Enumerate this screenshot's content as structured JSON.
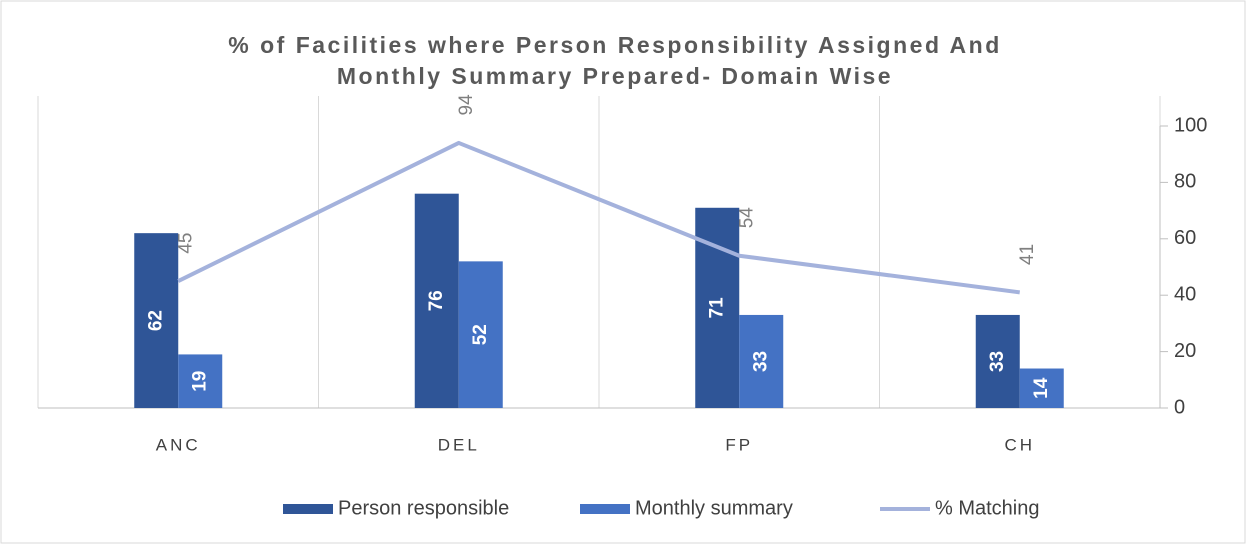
{
  "chart_data": {
    "type": "bar",
    "title": [
      "% of Facilities where Person Responsibility Assigned And",
      "Monthly Summary Prepared- Domain Wise"
    ],
    "categories": [
      "ANC",
      "DEL",
      "FP",
      "CH"
    ],
    "series": [
      {
        "name": "Person responsible",
        "type": "bar",
        "color": "#2f5597",
        "values": [
          62,
          76,
          71,
          33
        ]
      },
      {
        "name": "Monthly summary",
        "type": "bar",
        "color": "#4472c4",
        "values": [
          19,
          52,
          33,
          14
        ]
      },
      {
        "name": "% Matching",
        "type": "line",
        "color": "#a4b2dc",
        "values": [
          45,
          94,
          54,
          41
        ]
      }
    ],
    "ylim": [
      0,
      100
    ],
    "yticks": [
      0,
      20,
      40,
      60,
      80,
      100
    ],
    "axis_side": "right",
    "grid": false,
    "legend": "bottom"
  }
}
